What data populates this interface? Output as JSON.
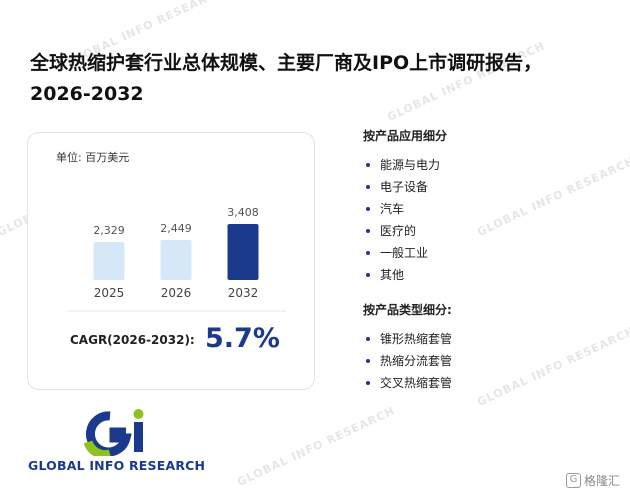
{
  "title": "全球热缩护套行业总体规模、主要厂商及IPO上市调研报告，2026-2032",
  "chart_data": {
    "type": "bar",
    "unit_label": "单位: 百万美元",
    "categories": [
      "2025",
      "2026",
      "2032"
    ],
    "values": [
      2329,
      2449,
      3408
    ],
    "value_labels": [
      "2,329",
      "2,449",
      "3,408"
    ],
    "bar_colors": [
      "#d6e8f8",
      "#d6e8f8",
      "#1b3a8c"
    ],
    "ylim": [
      0,
      3500
    ]
  },
  "cagr": {
    "label": "CAGR(2026-2032):",
    "value": "5.7%"
  },
  "segments": {
    "by_application": {
      "title": "按产品应用细分",
      "items": [
        "能源与电力",
        "电子设备",
        "汽车",
        "医疗的",
        "一般工业",
        "其他"
      ]
    },
    "by_type": {
      "title": "按产品类型细分:",
      "items": [
        "锥形热缩套管",
        "热缩分流套管",
        "交叉热缩套管"
      ]
    }
  },
  "logo": {
    "text": "GLOBAL INFO RESEARCH",
    "colors": [
      "#1b3a8c",
      "#8dc21f"
    ]
  },
  "corner_brand": {
    "icon": "G",
    "text": "格隆汇"
  },
  "watermark": "GLOBAL INFO RESEARCH"
}
